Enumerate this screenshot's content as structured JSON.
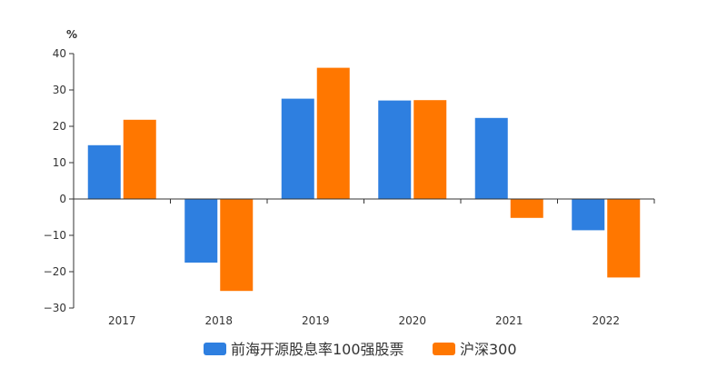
{
  "chart_data": {
    "type": "bar",
    "ylabel": "%",
    "ylim": [
      -30,
      40
    ],
    "ytick_step": 10,
    "categories": [
      "2017",
      "2018",
      "2019",
      "2020",
      "2021",
      "2022"
    ],
    "series": [
      {
        "name": "前海开源股息率100强股票",
        "color": "#2e7fe0",
        "values": [
          14.8,
          -17.5,
          27.6,
          27.1,
          22.3,
          -8.6
        ]
      },
      {
        "name": "沪深300",
        "color": "#ff7700",
        "values": [
          21.8,
          -25.3,
          36.1,
          27.2,
          -5.2,
          -21.6
        ]
      }
    ],
    "grid": false,
    "legend": "bottom-center"
  }
}
